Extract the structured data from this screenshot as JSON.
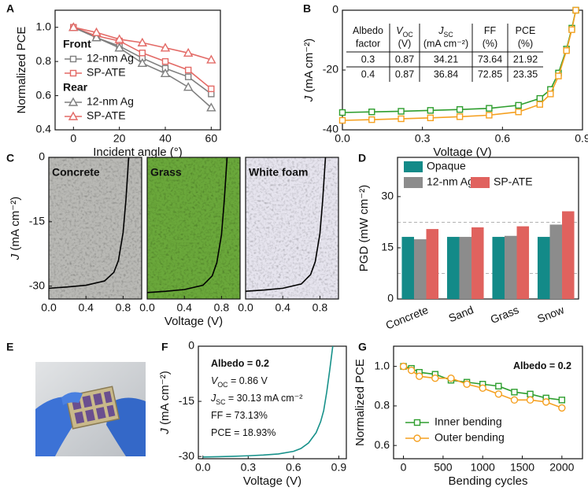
{
  "chart_data": [
    {
      "panel": "A",
      "type": "line",
      "xlabel": "Incident angle (°)",
      "ylabel": {
        "text": "Normalized PCE"
      },
      "x": [
        0,
        10,
        20,
        30,
        40,
        50,
        60
      ],
      "xlim": [
        -8,
        64
      ],
      "xticks": [
        0,
        20,
        40,
        60
      ],
      "ylim": [
        0.4,
        1.1
      ],
      "yticks": [
        0.4,
        0.6,
        0.8,
        {
          "value": 1,
          "label": "1.0"
        }
      ],
      "groups": [
        {
          "title": "Front",
          "series": [
            {
              "name": "12-nm Ag",
              "color": "#7f7f7f",
              "marker": "square",
              "values": [
                1.0,
                0.94,
                0.89,
                0.82,
                0.76,
                0.71,
                0.61
              ]
            },
            {
              "name": "SP-ATE",
              "color": "#e36a66",
              "marker": "square",
              "values": [
                1.0,
                0.95,
                0.92,
                0.85,
                0.8,
                0.75,
                0.64
              ]
            }
          ]
        },
        {
          "title": "Rear",
          "series": [
            {
              "name": "12-nm Ag",
              "color": "#7f7f7f",
              "marker": "triangle",
              "values": [
                1.0,
                0.94,
                0.88,
                0.79,
                0.73,
                0.65,
                0.53
              ]
            },
            {
              "name": "SP-ATE",
              "color": "#e36a66",
              "marker": "triangle",
              "values": [
                1.0,
                0.97,
                0.93,
                0.91,
                0.88,
                0.85,
                0.81
              ]
            }
          ]
        }
      ]
    },
    {
      "panel": "B",
      "type": "line",
      "xlabel": "Voltage (V)",
      "ylabel": {
        "symbol": "J",
        "text": " (mA cm⁻²)"
      },
      "x": [
        0,
        0.11,
        0.22,
        0.33,
        0.44,
        0.55,
        0.66,
        0.74,
        0.78,
        0.81,
        0.84,
        0.86,
        0.875
      ],
      "xlim": [
        0,
        0.9
      ],
      "xticks": [
        {
          "value": 0,
          "label": "0.0"
        },
        0.3,
        0.6,
        0.9
      ],
      "ylim": [
        -40,
        0
      ],
      "yticks": [
        -40,
        -20,
        0
      ],
      "series": [
        {
          "color": "#2e9e2e",
          "marker": "square",
          "values": [
            -34.21,
            -34.0,
            -33.8,
            -33.5,
            -33.2,
            -32.8,
            -31.8,
            -29.5,
            -26.5,
            -21,
            -13,
            -6,
            0
          ]
        },
        {
          "color": "#f5a020",
          "marker": "square",
          "values": [
            -36.84,
            -36.6,
            -36.3,
            -36.0,
            -35.6,
            -35.1,
            -34.0,
            -31.5,
            -28,
            -22,
            -13.5,
            -6.5,
            0
          ]
        }
      ],
      "table": {
        "header": [
          {
            "text": "Albedo",
            "unit": "factor"
          },
          {
            "symbol": "V",
            "sub": "OC",
            "unit": "(V)"
          },
          {
            "symbol": "J",
            "sub": "SC",
            "unit": "(mA cm⁻²)"
          },
          {
            "text": "FF",
            "unit": "(%)"
          },
          {
            "text": "PCE",
            "unit": "(%)"
          }
        ],
        "rows": [
          [
            0.3,
            0.87,
            34.21,
            73.64,
            21.92
          ],
          [
            0.4,
            0.87,
            36.84,
            72.85,
            23.35
          ]
        ]
      }
    },
    {
      "panel": "C",
      "type": "line",
      "label": "Concrete",
      "background": "#b9b9b5",
      "ylabel": {
        "symbol": "J",
        "text": " (mA cm⁻²)"
      },
      "x": [
        0,
        0.2,
        0.4,
        0.6,
        0.7,
        0.75,
        0.8,
        0.83,
        0.86
      ],
      "xlim": [
        0,
        1.0
      ],
      "xticks": [
        {
          "value": 0,
          "label": "0.0"
        },
        0.4,
        0.8
      ],
      "ylim": [
        -33,
        0
      ],
      "yticks": [
        -30,
        -15,
        0
      ],
      "series": [
        {
          "color": "#000000",
          "values": [
            -30.5,
            -30.2,
            -29.8,
            -28.8,
            -26.8,
            -24,
            -17.5,
            -10,
            0
          ]
        }
      ]
    },
    {
      "type": "line",
      "label": "Grass",
      "background": "#6aa83a",
      "xlabel": "Voltage (V)",
      "x": [
        0,
        0.2,
        0.4,
        0.6,
        0.7,
        0.75,
        0.8,
        0.83,
        0.86
      ],
      "xlim": [
        0,
        1.0
      ],
      "xticks": [
        {
          "value": 0,
          "label": "0.0"
        },
        0.4,
        0.8
      ],
      "ylim": [
        -33,
        0
      ],
      "series": [
        {
          "color": "#000000",
          "values": [
            -31.5,
            -31.2,
            -30.8,
            -29.8,
            -27.6,
            -24.5,
            -18,
            -10,
            0
          ]
        }
      ]
    },
    {
      "type": "line",
      "label": "White foam",
      "background": "#e6e4ee",
      "x": [
        0,
        0.2,
        0.4,
        0.6,
        0.7,
        0.75,
        0.8,
        0.83,
        0.86
      ],
      "xlim": [
        0,
        1.0
      ],
      "xticks": [
        {
          "value": 0,
          "label": "0.0"
        },
        0.4,
        0.8
      ],
      "ylim": [
        -33,
        0
      ],
      "series": [
        {
          "color": "#000000",
          "values": [
            -31.2,
            -30.9,
            -30.5,
            -29.5,
            -27.3,
            -24.3,
            -17.8,
            -10,
            0
          ]
        }
      ]
    },
    {
      "panel": "D",
      "type": "bar",
      "ylabel": {
        "text": "PGD (mW cm⁻²)"
      },
      "categories": [
        "Concrete",
        "Sand",
        "Grass",
        "Snow"
      ],
      "ylim": [
        0,
        41.5
      ],
      "yticks": [
        0,
        15,
        30
      ],
      "minor_yticks": [
        7.5,
        22.5
      ],
      "series": [
        {
          "name": "Opaque",
          "color": "#138a88",
          "values": [
            18.2,
            18.2,
            18.2,
            18.2
          ]
        },
        {
          "name": "12-nm Ag",
          "color": "#8c8c8c",
          "values": [
            17.5,
            18.2,
            18.5,
            21.8
          ]
        },
        {
          "name": "SP-ATE",
          "color": "#e0625e",
          "values": [
            20.5,
            21.0,
            21.3,
            25.7
          ]
        }
      ]
    },
    {
      "panel": "E",
      "type": "image"
    },
    {
      "panel": "F",
      "type": "line",
      "xlabel": "Voltage (V)",
      "ylabel": {
        "symbol": "J",
        "text": " (mA cm⁻²)"
      },
      "x": [
        0,
        0.1,
        0.2,
        0.3,
        0.4,
        0.5,
        0.6,
        0.65,
        0.7,
        0.75,
        0.78,
        0.8,
        0.82,
        0.84,
        0.86
      ],
      "xlim": [
        -0.03,
        0.95
      ],
      "xticks": [
        {
          "value": 0,
          "label": "0.0"
        },
        0.3,
        0.6,
        0.9
      ],
      "ylim": [
        -30.6,
        0
      ],
      "yticks": [
        -30,
        -15,
        0
      ],
      "series": [
        {
          "color": "#17918a",
          "values": [
            -30.13,
            -30.05,
            -29.95,
            -29.8,
            -29.6,
            -29.3,
            -28.6,
            -27.8,
            -26.3,
            -23.5,
            -20.5,
            -17.5,
            -12.5,
            -6.5,
            0
          ]
        }
      ],
      "annotations": [
        {
          "text": "Albedo = 0.2"
        },
        {
          "symbol": "V",
          "sub": "OC",
          "text": " = 0.86 V"
        },
        {
          "symbol": "J",
          "sub": "SC",
          "text": " = 30.13 mA cm⁻²"
        },
        {
          "text": "FF = 73.13%"
        },
        {
          "text": "PCE = 18.93%"
        }
      ]
    },
    {
      "panel": "G",
      "type": "line",
      "xlabel": "Bending cycles",
      "ylabel": {
        "text": "Normalized PCE"
      },
      "x": [
        0,
        100,
        200,
        400,
        600,
        800,
        1000,
        1200,
        1400,
        1600,
        1800,
        2000
      ],
      "xlim": [
        -125,
        2260
      ],
      "xticks": [
        0,
        500,
        1000,
        1500,
        2000
      ],
      "ylim": [
        0.533,
        1.102
      ],
      "yticks": [
        0.6,
        0.8,
        {
          "value": 1,
          "label": "1.0"
        }
      ],
      "series": [
        {
          "name": "Inner bending",
          "color": "#2e9e2e",
          "marker": "square",
          "values": [
            1.0,
            0.99,
            0.97,
            0.96,
            0.93,
            0.92,
            0.91,
            0.9,
            0.87,
            0.86,
            0.84,
            0.83
          ]
        },
        {
          "name": "Outer bending",
          "color": "#f5a020",
          "marker": "circle",
          "values": [
            1.0,
            0.98,
            0.95,
            0.94,
            0.94,
            0.91,
            0.89,
            0.86,
            0.83,
            0.83,
            0.82,
            0.79
          ]
        }
      ],
      "annotations": [
        {
          "text": "Albedo = 0.2"
        }
      ]
    }
  ]
}
